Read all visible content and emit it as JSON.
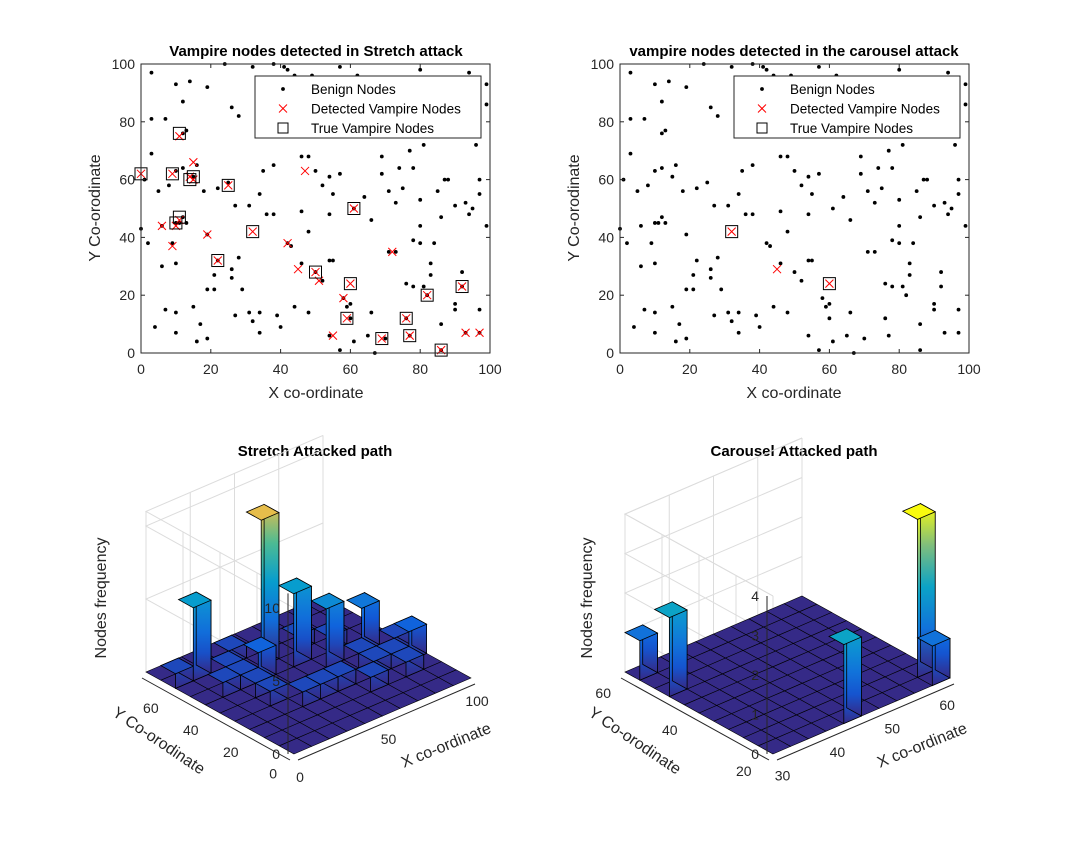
{
  "chart_data": [
    {
      "type": "scatter",
      "title": "Vampire nodes detected in Stretch attack",
      "xlabel": "X co-ordinate",
      "ylabel": "Y Co-orodinate",
      "xlim": [
        0,
        100
      ],
      "ylim": [
        0,
        100
      ],
      "xticks": [
        "0",
        "20",
        "40",
        "60",
        "80",
        "100"
      ],
      "yticks": [
        "0",
        "20",
        "40",
        "60",
        "80",
        "100"
      ],
      "legend": {
        "placement": "top-right",
        "entries": [
          "Benign Nodes",
          "Detected Vampire Nodes",
          "True Vampire Nodes"
        ]
      },
      "series": [
        {
          "name": "Benign Nodes",
          "marker": "dot",
          "color": "#000000",
          "ref": "benign"
        },
        {
          "name": "Detected Vampire Nodes",
          "marker": "x",
          "color": "#ff0000",
          "points": [
            [
              0,
              62
            ],
            [
              9,
              62
            ],
            [
              11,
              46
            ],
            [
              10,
              44
            ],
            [
              15,
              60
            ],
            [
              15,
              66
            ],
            [
              14,
              61
            ],
            [
              11,
              75
            ],
            [
              25,
              58
            ],
            [
              6,
              44
            ],
            [
              9,
              37
            ],
            [
              19,
              41
            ],
            [
              22,
              32
            ],
            [
              32,
              42
            ],
            [
              42,
              38
            ],
            [
              45,
              29
            ],
            [
              47,
              63
            ],
            [
              50,
              28
            ],
            [
              51,
              25
            ],
            [
              58,
              19
            ],
            [
              59,
              12
            ],
            [
              60,
              24
            ],
            [
              61,
              50
            ],
            [
              55,
              6
            ],
            [
              72,
              35
            ],
            [
              69,
              5
            ],
            [
              76,
              12
            ],
            [
              77,
              6
            ],
            [
              82,
              20
            ],
            [
              86,
              1
            ],
            [
              92,
              23
            ],
            [
              93,
              7
            ],
            [
              97,
              7
            ]
          ]
        },
        {
          "name": "True Vampire Nodes",
          "marker": "square",
          "color": "#000000",
          "points": [
            [
              0,
              62
            ],
            [
              9,
              62
            ],
            [
              11,
              47
            ],
            [
              10,
              45
            ],
            [
              15,
              61
            ],
            [
              14,
              60
            ],
            [
              11,
              76
            ],
            [
              25,
              58
            ],
            [
              22,
              32
            ],
            [
              32,
              42
            ],
            [
              50,
              28
            ],
            [
              59,
              12
            ],
            [
              60,
              24
            ],
            [
              61,
              50
            ],
            [
              69,
              5
            ],
            [
              76,
              12
            ],
            [
              77,
              6
            ],
            [
              82,
              20
            ],
            [
              86,
              1
            ],
            [
              92,
              23
            ]
          ]
        }
      ]
    },
    {
      "type": "scatter",
      "title": "vampire nodes detected in the carousel attack",
      "xlabel": "X co-ordinate",
      "ylabel": "Y Co-orodinate",
      "xlim": [
        0,
        100
      ],
      "ylim": [
        0,
        100
      ],
      "xticks": [
        "0",
        "20",
        "40",
        "60",
        "80",
        "100"
      ],
      "yticks": [
        "0",
        "20",
        "40",
        "60",
        "80",
        "100"
      ],
      "legend": {
        "placement": "top-right",
        "entries": [
          "Benign Nodes",
          "Detected Vampire Nodes",
          "True Vampire Nodes"
        ]
      },
      "series": [
        {
          "name": "Benign Nodes",
          "marker": "dot",
          "color": "#000000",
          "ref": "benign"
        },
        {
          "name": "Detected Vampire Nodes",
          "marker": "x",
          "color": "#ff0000",
          "points": [
            [
              32,
              42
            ],
            [
              45,
              29
            ],
            [
              60,
              24
            ]
          ]
        },
        {
          "name": "True Vampire Nodes",
          "marker": "square",
          "color": "#000000",
          "points": [
            [
              32,
              42
            ],
            [
              60,
              24
            ]
          ]
        }
      ]
    },
    {
      "type": "bar3d",
      "title": "Stretch Attacked path",
      "xlabel": "X co-ordinate",
      "ylabel": "Y Co-orodinate",
      "zlabel": "Nodes frequency",
      "xlim": [
        0,
        100
      ],
      "ylim": [
        0,
        75
      ],
      "zlim": [
        0,
        11
      ],
      "xticks": [
        "0",
        "50",
        "100"
      ],
      "yticks": [
        "0",
        "20",
        "40",
        "60"
      ],
      "zticks": [
        "0",
        "5",
        "10"
      ],
      "grid": "10x10",
      "bars": [
        [
          0,
          8,
          1
        ],
        [
          1,
          8,
          5
        ],
        [
          1,
          6,
          1
        ],
        [
          2,
          6,
          1
        ],
        [
          2,
          5,
          1
        ],
        [
          3,
          6,
          2
        ],
        [
          4,
          7,
          10
        ],
        [
          3,
          3,
          1
        ],
        [
          4,
          3,
          1
        ],
        [
          5,
          6,
          5
        ],
        [
          6,
          5,
          4
        ],
        [
          6,
          7,
          1
        ],
        [
          7,
          6,
          1
        ],
        [
          7,
          4,
          1
        ],
        [
          8,
          5,
          3
        ],
        [
          8,
          3,
          1
        ],
        [
          8,
          2,
          1
        ],
        [
          9,
          3,
          2
        ],
        [
          2,
          7,
          1
        ],
        [
          3,
          8,
          1
        ],
        [
          5,
          3,
          1
        ],
        [
          7,
          3,
          1
        ],
        [
          9,
          4,
          1
        ],
        [
          2,
          4,
          1
        ],
        [
          6,
          2,
          1
        ]
      ]
    },
    {
      "type": "bar3d",
      "title": "Carousel Attacked path",
      "xlabel": "X co-ordinate",
      "ylabel": "Y Co-orodinate",
      "zlabel": "Nodes frequency",
      "xlim": [
        30,
        62
      ],
      "ylim": [
        22,
        62
      ],
      "zlim": [
        0,
        4
      ],
      "xticks": [
        "30",
        "40",
        "50",
        "60"
      ],
      "yticks": [
        "20",
        "40",
        "60"
      ],
      "zticks": [
        "0",
        "1",
        "2",
        "3",
        "4"
      ],
      "grid": "10x10",
      "bars": [
        [
          0,
          9,
          1
        ],
        [
          0,
          7,
          2
        ],
        [
          4,
          0,
          2
        ],
        [
          9,
          1,
          4
        ],
        [
          9,
          0,
          1
        ]
      ]
    }
  ],
  "benign": [
    [
      3,
      97
    ],
    [
      10,
      93
    ],
    [
      12,
      87
    ],
    [
      3,
      81
    ],
    [
      7,
      81
    ],
    [
      14,
      94
    ],
    [
      13,
      77
    ],
    [
      12,
      76
    ],
    [
      16,
      65
    ],
    [
      15,
      61
    ],
    [
      19,
      92
    ],
    [
      24,
      100
    ],
    [
      26,
      85
    ],
    [
      28,
      82
    ],
    [
      32,
      99
    ],
    [
      38,
      100
    ],
    [
      41,
      99
    ],
    [
      42,
      98
    ],
    [
      44,
      96
    ],
    [
      46,
      92
    ],
    [
      49,
      96
    ],
    [
      57,
      99
    ],
    [
      62,
      96
    ],
    [
      66,
      94
    ],
    [
      80,
      98
    ],
    [
      92,
      94
    ],
    [
      94,
      97
    ],
    [
      99,
      93
    ],
    [
      99,
      86
    ],
    [
      96,
      72
    ],
    [
      81,
      72
    ],
    [
      77,
      70
    ],
    [
      69,
      68
    ],
    [
      78,
      64
    ],
    [
      69,
      62
    ],
    [
      74,
      64
    ],
    [
      71,
      56
    ],
    [
      75,
      57
    ],
    [
      73,
      52
    ],
    [
      80,
      53
    ],
    [
      87,
      60
    ],
    [
      85,
      56
    ],
    [
      88,
      60
    ],
    [
      97,
      60
    ],
    [
      97,
      55
    ],
    [
      93,
      52
    ],
    [
      90,
      51
    ],
    [
      95,
      50
    ],
    [
      99,
      44
    ],
    [
      94,
      48
    ],
    [
      86,
      47
    ],
    [
      80,
      44
    ],
    [
      78,
      39
    ],
    [
      80,
      38
    ],
    [
      84,
      38
    ],
    [
      73,
      35
    ],
    [
      71,
      35
    ],
    [
      66,
      46
    ],
    [
      61,
      50
    ],
    [
      54,
      48
    ],
    [
      46,
      49
    ],
    [
      38,
      48
    ],
    [
      36,
      48
    ],
    [
      48,
      42
    ],
    [
      42,
      38
    ],
    [
      43,
      37
    ],
    [
      46,
      31
    ],
    [
      50,
      28
    ],
    [
      52,
      25
    ],
    [
      54,
      32
    ],
    [
      55,
      32
    ],
    [
      58,
      19
    ],
    [
      59,
      16
    ],
    [
      60,
      17
    ],
    [
      60,
      12
    ],
    [
      66,
      14
    ],
    [
      65,
      6
    ],
    [
      70,
      5
    ],
    [
      67,
      0
    ],
    [
      57,
      1
    ],
    [
      61,
      4
    ],
    [
      54,
      6
    ],
    [
      48,
      14
    ],
    [
      44,
      16
    ],
    [
      39,
      13
    ],
    [
      40,
      9
    ],
    [
      34,
      14
    ],
    [
      34,
      7
    ],
    [
      32,
      11
    ],
    [
      31,
      14
    ],
    [
      27,
      13
    ],
    [
      29,
      22
    ],
    [
      28,
      33
    ],
    [
      26,
      29
    ],
    [
      26,
      26
    ],
    [
      22,
      32
    ],
    [
      21,
      27
    ],
    [
      21,
      22
    ],
    [
      19,
      22
    ],
    [
      19,
      41
    ],
    [
      15,
      16
    ],
    [
      17,
      10
    ],
    [
      16,
      4
    ],
    [
      19,
      5
    ],
    [
      10,
      7
    ],
    [
      10,
      14
    ],
    [
      7,
      15
    ],
    [
      4,
      9
    ],
    [
      6,
      30
    ],
    [
      10,
      31
    ],
    [
      11,
      45
    ],
    [
      10,
      45
    ],
    [
      12,
      47
    ],
    [
      13,
      45
    ],
    [
      9,
      38
    ],
    [
      6,
      44
    ],
    [
      2,
      38
    ],
    [
      0,
      43
    ],
    [
      1,
      60
    ],
    [
      3,
      69
    ],
    [
      8,
      58
    ],
    [
      12,
      64
    ],
    [
      10,
      63
    ],
    [
      5,
      56
    ],
    [
      22,
      57
    ],
    [
      25,
      59
    ],
    [
      18,
      56
    ],
    [
      34,
      55
    ],
    [
      31,
      51
    ],
    [
      27,
      51
    ],
    [
      35,
      63
    ],
    [
      38,
      65
    ],
    [
      46,
      68
    ],
    [
      48,
      68
    ],
    [
      57,
      62
    ],
    [
      55,
      55
    ],
    [
      54,
      61
    ],
    [
      50,
      63
    ],
    [
      52,
      58
    ],
    [
      64,
      54
    ],
    [
      76,
      24
    ],
    [
      78,
      23
    ],
    [
      82,
      20
    ],
    [
      83,
      31
    ],
    [
      83,
      27
    ],
    [
      81,
      23
    ],
    [
      90,
      17
    ],
    [
      90,
      15
    ],
    [
      92,
      28
    ],
    [
      92,
      23
    ],
    [
      97,
      15
    ],
    [
      97,
      7
    ],
    [
      93,
      7
    ],
    [
      86,
      10
    ],
    [
      86,
      1
    ],
    [
      77,
      6
    ],
    [
      76,
      12
    ]
  ]
}
